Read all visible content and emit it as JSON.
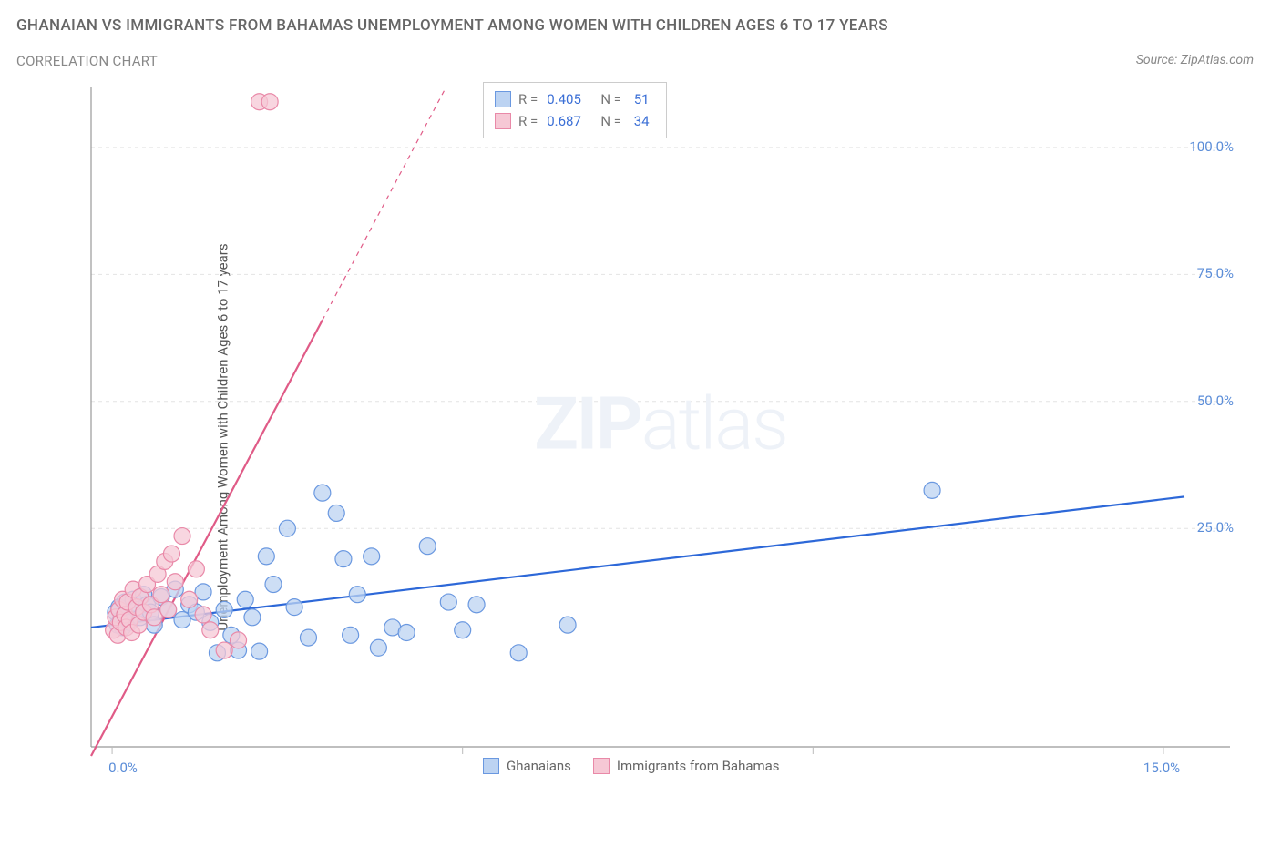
{
  "title_main": "GHANAIAN VS IMMIGRANTS FROM BAHAMAS UNEMPLOYMENT AMONG WOMEN WITH CHILDREN AGES 6 TO 17 YEARS",
  "title_sub": "CORRELATION CHART",
  "source_text": "Source: ZipAtlas.com",
  "y_axis_label": "Unemployment Among Women with Children Ages 6 to 17 years",
  "watermark_bold": "ZIP",
  "watermark_light": "atlas",
  "chart": {
    "type": "scatter",
    "background_color": "#ffffff",
    "grid_color": "#e4e4e4",
    "grid_dash": "4,4",
    "axis_color": "#999999",
    "tick_color": "#bbbbbb",
    "x_range": [
      -0.3,
      15.3
    ],
    "y_range": [
      -18,
      112
    ],
    "x_ticks": [
      0.0,
      5.0,
      10.0,
      15.0
    ],
    "x_tick_labels": [
      "0.0%",
      "",
      "",
      "15.0%"
    ],
    "y_ticks": [
      25.0,
      50.0,
      75.0,
      100.0
    ],
    "y_tick_labels": [
      "25.0%",
      "50.0%",
      "75.0%",
      "100.0%"
    ],
    "tick_label_color": "#5b8dd8",
    "tick_label_fontsize": 15,
    "legend_top": {
      "border_color": "#cccccc",
      "rows": [
        {
          "swatch_fill": "#bcd3f2",
          "swatch_stroke": "#6a98e0",
          "r_label": "R = ",
          "r_value": "0.405",
          "n_label": "N = ",
          "n_value": "51"
        },
        {
          "swatch_fill": "#f6c8d5",
          "swatch_stroke": "#e989a8",
          "r_label": "R = ",
          "r_value": "0.687",
          "n_label": "N = ",
          "n_value": "34"
        }
      ]
    },
    "legend_bottom": {
      "items": [
        {
          "swatch_fill": "#bcd3f2",
          "swatch_stroke": "#6a98e0",
          "label": "Ghanaians"
        },
        {
          "swatch_fill": "#f6c8d5",
          "swatch_stroke": "#e989a8",
          "label": "Immigrants from Bahamas"
        }
      ]
    },
    "series": [
      {
        "name": "Ghanaians",
        "marker_fill": "#bcd3f2",
        "marker_stroke": "#6a98e0",
        "marker_opacity": 0.75,
        "marker_radius": 9,
        "trend_color": "#2d68d8",
        "trend_width": 2.2,
        "trend_solid_xmax": 15.3,
        "trend_intercept": 6.0,
        "trend_slope": 1.65,
        "points": [
          [
            0.05,
            8.5
          ],
          [
            0.08,
            6.0
          ],
          [
            0.1,
            9.5
          ],
          [
            0.12,
            7.0
          ],
          [
            0.15,
            5.5
          ],
          [
            0.18,
            10.5
          ],
          [
            0.2,
            8.0
          ],
          [
            0.25,
            6.5
          ],
          [
            0.3,
            11.0
          ],
          [
            0.35,
            9.0
          ],
          [
            0.4,
            7.5
          ],
          [
            0.45,
            12.0
          ],
          [
            0.5,
            10.0
          ],
          [
            0.55,
            8.5
          ],
          [
            0.6,
            6.0
          ],
          [
            0.7,
            11.5
          ],
          [
            0.8,
            9.0
          ],
          [
            0.9,
            13.0
          ],
          [
            1.0,
            7.0
          ],
          [
            1.1,
            10.0
          ],
          [
            1.2,
            8.5
          ],
          [
            1.3,
            12.5
          ],
          [
            1.4,
            6.5
          ],
          [
            1.5,
            0.5
          ],
          [
            1.6,
            9.0
          ],
          [
            1.7,
            4.0
          ],
          [
            1.8,
            1.0
          ],
          [
            1.9,
            11.0
          ],
          [
            2.0,
            7.5
          ],
          [
            2.1,
            0.8
          ],
          [
            2.2,
            19.5
          ],
          [
            2.3,
            14.0
          ],
          [
            2.5,
            25.0
          ],
          [
            2.6,
            9.5
          ],
          [
            2.8,
            3.5
          ],
          [
            3.0,
            32.0
          ],
          [
            3.2,
            28.0
          ],
          [
            3.3,
            19.0
          ],
          [
            3.4,
            4.0
          ],
          [
            3.5,
            12.0
          ],
          [
            3.7,
            19.5
          ],
          [
            3.8,
            1.5
          ],
          [
            4.0,
            5.5
          ],
          [
            4.2,
            4.5
          ],
          [
            4.5,
            21.5
          ],
          [
            4.8,
            10.5
          ],
          [
            5.0,
            5.0
          ],
          [
            5.2,
            10.0
          ],
          [
            5.8,
            0.5
          ],
          [
            6.5,
            6.0
          ],
          [
            11.7,
            32.5
          ]
        ]
      },
      {
        "name": "Immigrants from Bahamas",
        "marker_fill": "#f6c8d5",
        "marker_stroke": "#e989a8",
        "marker_opacity": 0.75,
        "marker_radius": 9,
        "trend_color": "#e05b87",
        "trend_width": 2.2,
        "trend_solid_xmax": 3.0,
        "trend_dash": "5,5",
        "trend_intercept": -12.0,
        "trend_slope": 26.0,
        "points": [
          [
            0.02,
            5.0
          ],
          [
            0.05,
            7.5
          ],
          [
            0.08,
            4.0
          ],
          [
            0.1,
            9.0
          ],
          [
            0.12,
            6.5
          ],
          [
            0.15,
            11.0
          ],
          [
            0.18,
            8.0
          ],
          [
            0.2,
            5.5
          ],
          [
            0.22,
            10.5
          ],
          [
            0.25,
            7.0
          ],
          [
            0.28,
            4.5
          ],
          [
            0.3,
            13.0
          ],
          [
            0.35,
            9.5
          ],
          [
            0.38,
            6.0
          ],
          [
            0.4,
            11.5
          ],
          [
            0.45,
            8.5
          ],
          [
            0.5,
            14.0
          ],
          [
            0.55,
            10.0
          ],
          [
            0.6,
            7.5
          ],
          [
            0.65,
            16.0
          ],
          [
            0.7,
            12.0
          ],
          [
            0.75,
            18.5
          ],
          [
            0.8,
            9.0
          ],
          [
            0.85,
            20.0
          ],
          [
            0.9,
            14.5
          ],
          [
            1.0,
            23.5
          ],
          [
            1.1,
            11.0
          ],
          [
            1.2,
            17.0
          ],
          [
            1.3,
            8.0
          ],
          [
            1.4,
            5.0
          ],
          [
            1.6,
            1.0
          ],
          [
            1.8,
            3.0
          ],
          [
            2.1,
            109.0
          ],
          [
            2.25,
            109.0
          ]
        ]
      }
    ]
  }
}
